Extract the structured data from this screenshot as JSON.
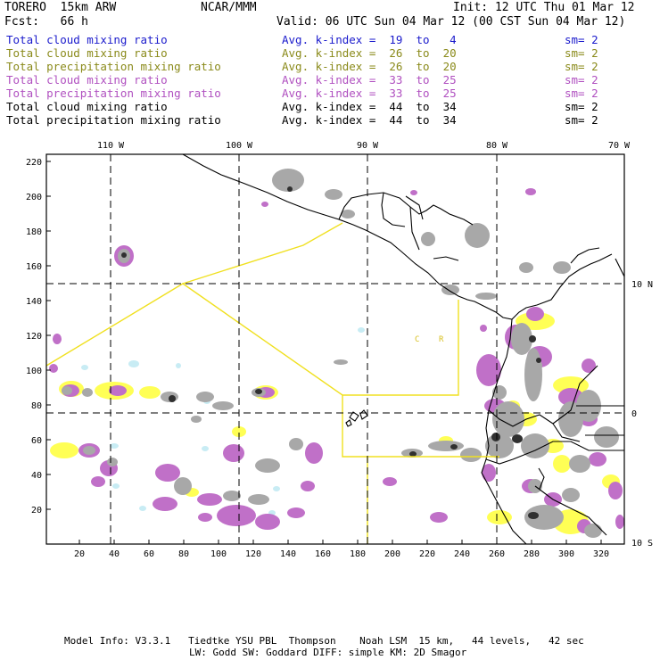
{
  "header": {
    "model": "TORERO  15km ARW",
    "org": "NCAR/MMM",
    "init": "Init: 12 UTC Thu 01 Mar 12",
    "fcst": "Fcst:   66 h",
    "valid": "Valid: 06 UTC Sun 04 Mar 12 (00 CST Sun 04 Mar 12)"
  },
  "legend": [
    {
      "field": "Total cloud mixing ratio",
      "k_index": "Avg. k-index =  19  to   4",
      "sm": "sm= 2",
      "color": "#1a1acc"
    },
    {
      "field": "Total cloud mixing ratio",
      "k_index": "Avg. k-index =  26  to  20",
      "sm": "sm= 2",
      "color": "#8a8a1a"
    },
    {
      "field": "Total precipitation mixing ratio",
      "k_index": "Avg. k-index =  26  to  20",
      "sm": "sm= 2",
      "color": "#8a8a1a"
    },
    {
      "field": "Total cloud mixing ratio",
      "k_index": "Avg. k-index =  33  to  25",
      "sm": "sm= 2",
      "color": "#b050c0"
    },
    {
      "field": "Total precipitation mixing ratio",
      "k_index": "Avg. k-index =  33  to  25",
      "sm": "sm= 2",
      "color": "#b050c0"
    },
    {
      "field": "Total cloud mixing ratio",
      "k_index": "Avg. k-index =  44  to  34",
      "sm": "sm= 2",
      "color": "#000000"
    },
    {
      "field": "Total precipitation mixing ratio",
      "k_index": "Avg. k-index =  44  to  34",
      "sm": "sm= 2",
      "color": "#000000"
    }
  ],
  "axes": {
    "top_labels": [
      "110 W",
      "100 W",
      "90 W",
      "80 W",
      "70 W"
    ],
    "right_labels": [
      "10 N",
      "0",
      "10 S"
    ],
    "left_ticks": [
      "220",
      "200",
      "180",
      "160",
      "140",
      "120",
      "100",
      "80",
      "60",
      "40",
      "20"
    ],
    "bottom_ticks": [
      "20",
      "40",
      "60",
      "80",
      "100",
      "120",
      "140",
      "160",
      "180",
      "200",
      "220",
      "240",
      "260",
      "280",
      "300",
      "320"
    ]
  },
  "map_labels": [
    "C",
    "R"
  ],
  "colors": {
    "yellow_shade": "#ffff55",
    "purple_shade": "#c070c8",
    "gray_shade": "#a8a8a8",
    "dark_shade": "#303030",
    "cyan_shade": "#c8ecf4",
    "boundary_yellow": "#f0e020"
  },
  "footer": {
    "line1": "Model Info: V3.3.1   Tiedtke YSU PBL  Thompson    Noah LSM  15 km,   44 levels,   42 sec",
    "line2": "LW: Godd SW: Goddard DIFF: simple KM: 2D Smagor"
  }
}
